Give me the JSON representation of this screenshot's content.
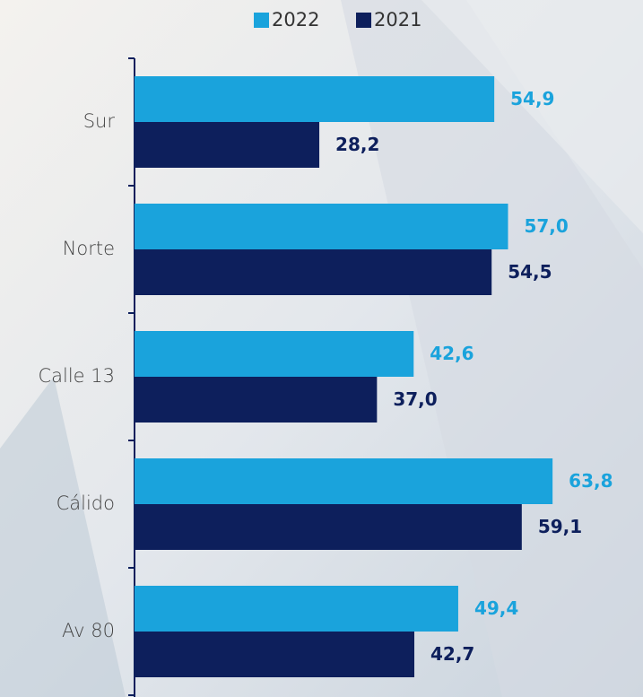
{
  "chart_data": {
    "type": "bar",
    "orientation": "horizontal",
    "categories": [
      "Sur",
      "Norte",
      "Calle 13",
      "Cálido",
      "Av 80"
    ],
    "series": [
      {
        "name": "2022",
        "color": "#1aa3dc",
        "values": [
          54.9,
          57.0,
          42.6,
          63.8,
          49.4
        ],
        "value_labels": [
          "54,9",
          "57,0",
          "42,6",
          "63,8",
          "49,4"
        ]
      },
      {
        "name": "2021",
        "color": "#0d1f5c",
        "values": [
          28.2,
          54.5,
          37.0,
          59.1,
          42.7
        ],
        "value_labels": [
          "28,2",
          "54,5",
          "37,0",
          "59,1",
          "42,7"
        ]
      }
    ],
    "xlim": [
      0,
      77.6
    ],
    "legend": "top"
  }
}
